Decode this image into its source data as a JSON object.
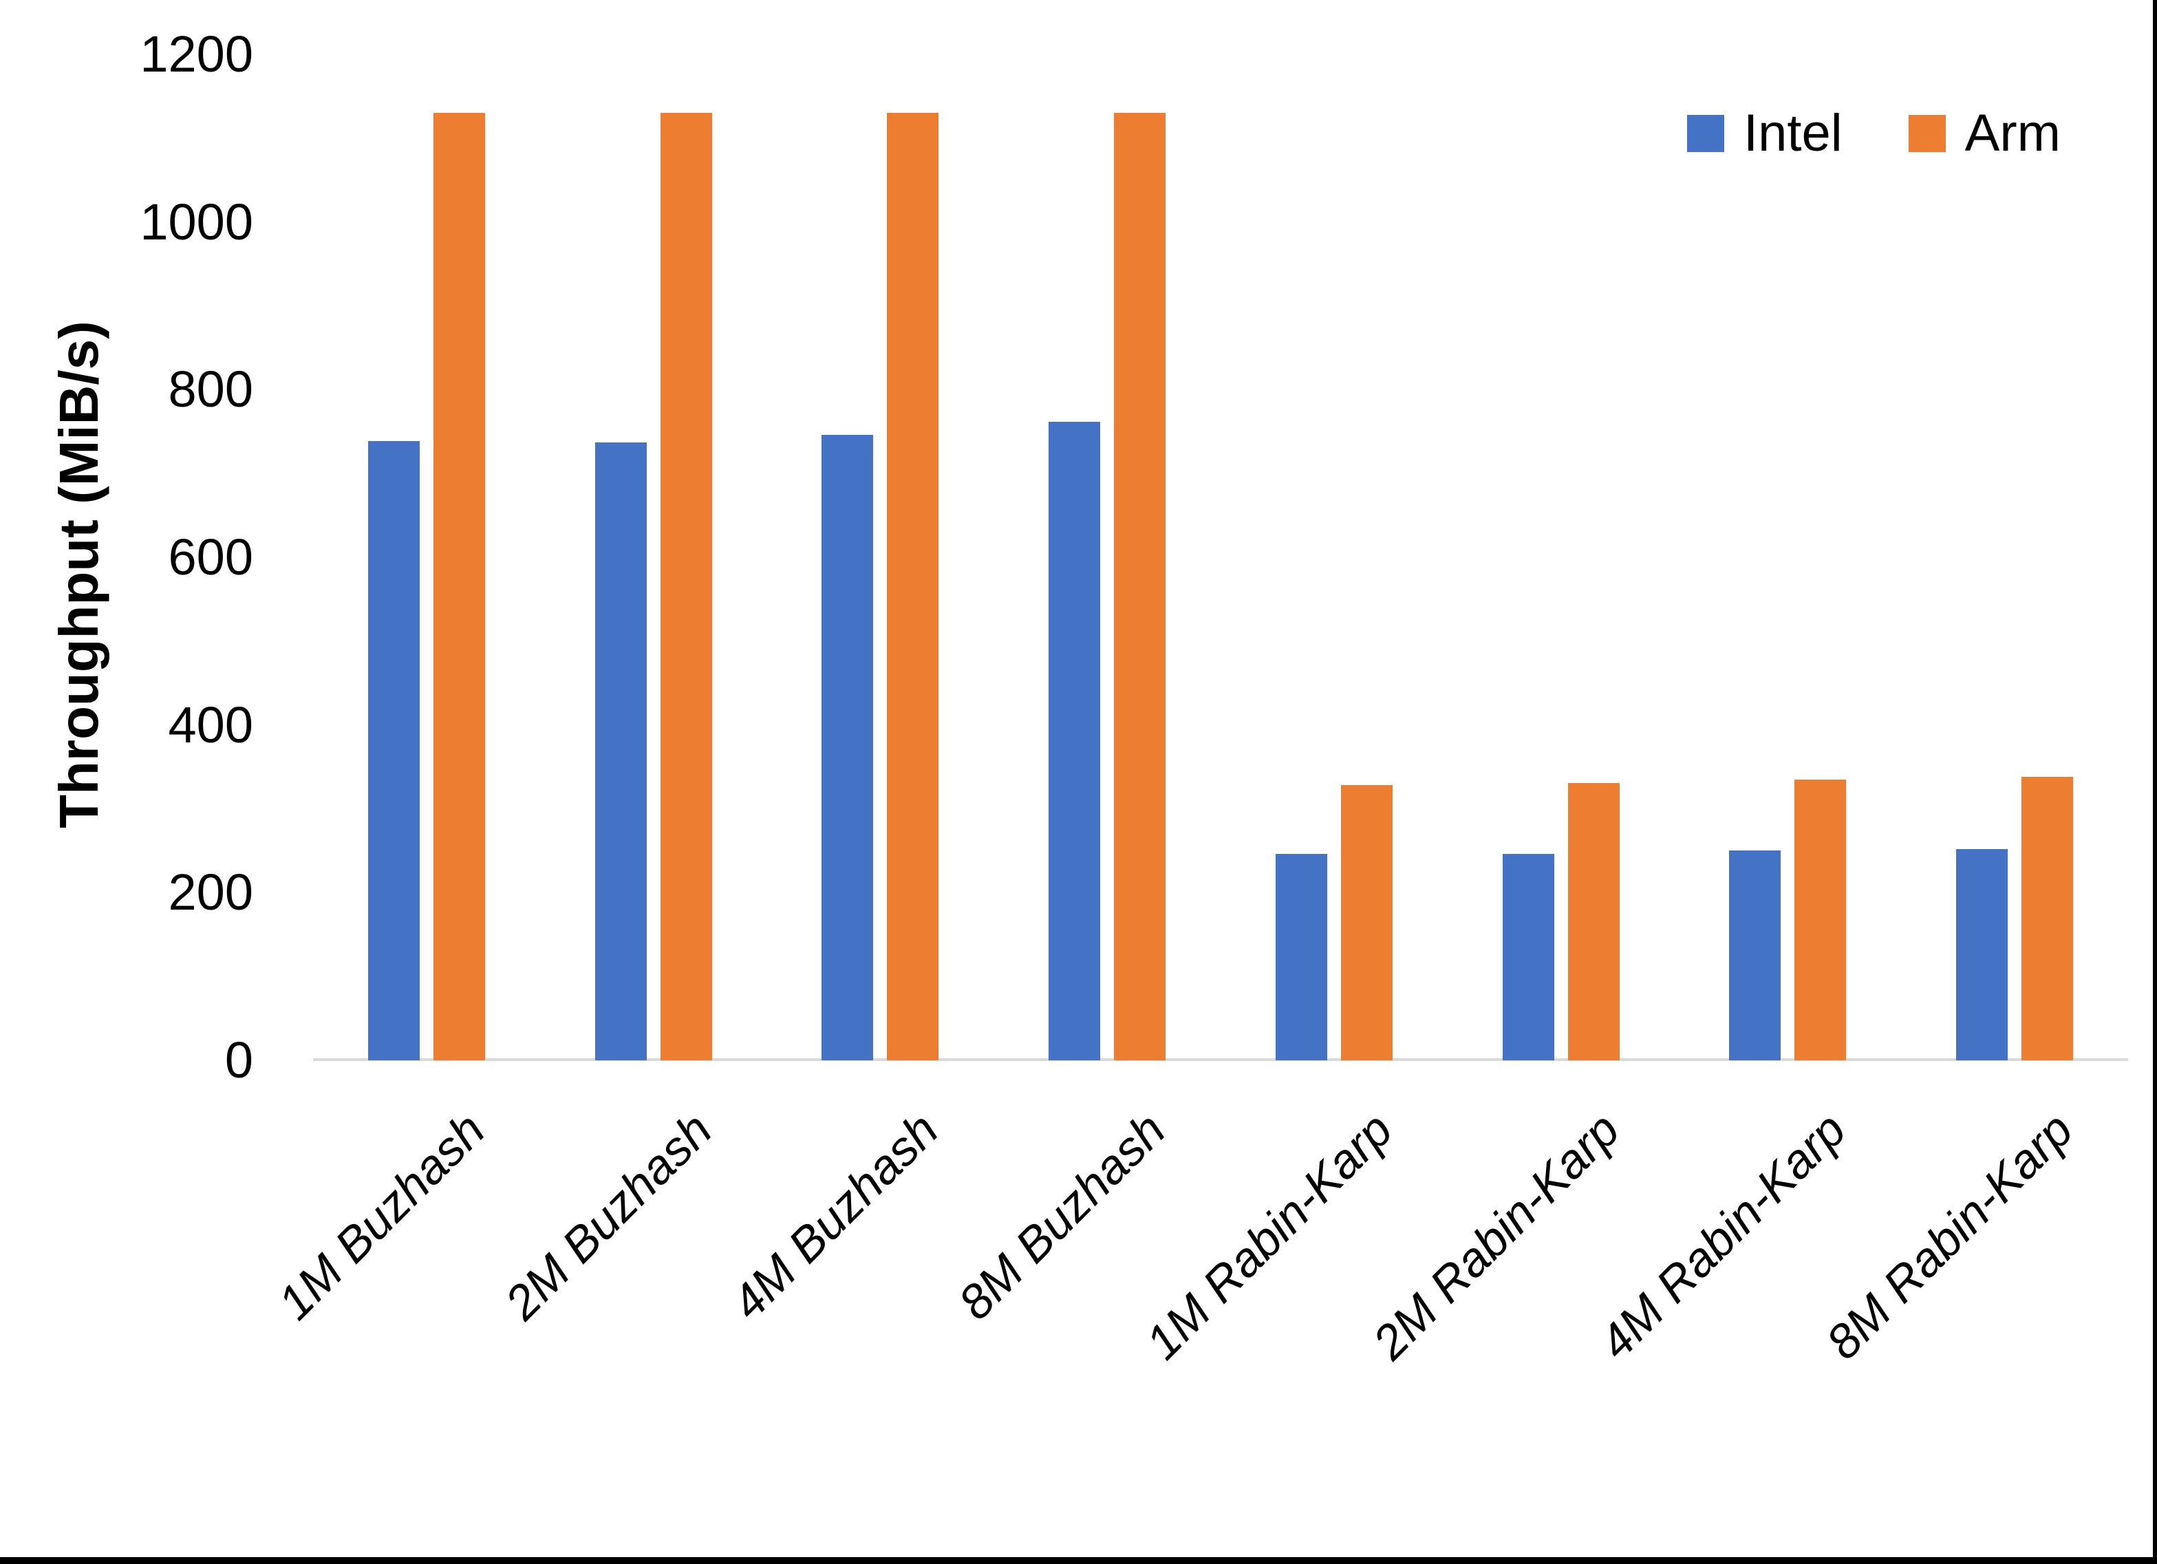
{
  "chart_data": {
    "type": "bar",
    "title": "",
    "xlabel": "",
    "ylabel": "Throughput (MiB/s)",
    "ylim": [
      0,
      1200
    ],
    "ytick_interval": 200,
    "ytick_labels": [
      "0",
      "200",
      "400",
      "600",
      "800",
      "1000",
      "1200"
    ],
    "grid": false,
    "legend_position": "top-right",
    "categories": [
      "1M Buzhash",
      "2M Buzhash",
      "4M Buzhash",
      "8M Buzhash",
      "1M Rabin-Karp",
      "2M Rabin-Karp",
      "4M Rabin-Karp",
      "8M Rabin-Karp"
    ],
    "series": [
      {
        "name": "Intel",
        "color": "#4472C4",
        "values": [
          739,
          737,
          746,
          762,
          246,
          246,
          250,
          252
        ]
      },
      {
        "name": "Arm",
        "color": "#ED7D31",
        "values": [
          1130,
          1130,
          1130,
          1130,
          328,
          331,
          335,
          338
        ]
      }
    ]
  },
  "axis": {
    "line_color": "#D9D9D9",
    "text_color": "#000000"
  },
  "figure": {
    "background": "#FFFFFF",
    "bottom_border_color": "#000000",
    "right_border_color": "#000000"
  }
}
